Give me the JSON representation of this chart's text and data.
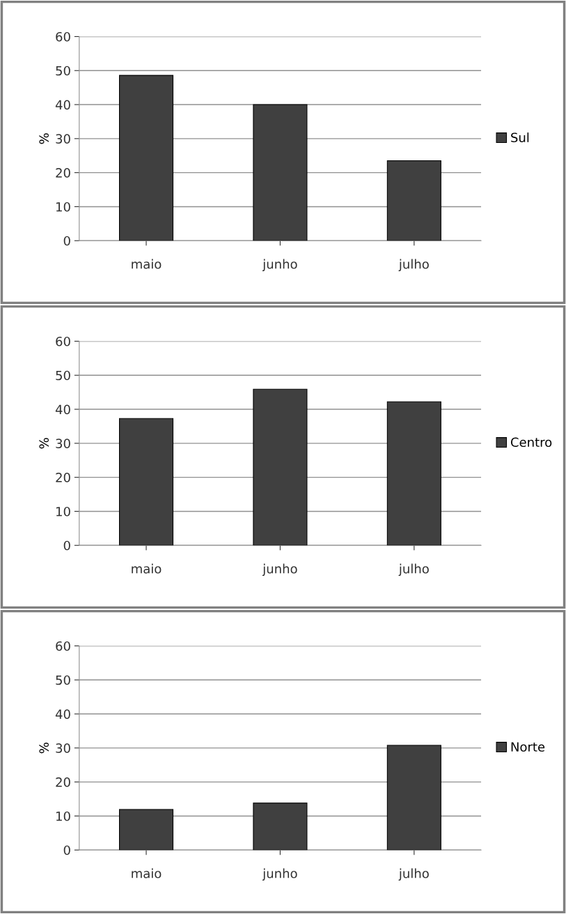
{
  "chart_data": [
    {
      "type": "bar",
      "ylabel": "%",
      "categories": [
        "maio",
        "junho",
        "julho"
      ],
      "series": [
        {
          "name": "Sul",
          "color": "#404040",
          "values": [
            48.6,
            40,
            23.5
          ]
        }
      ],
      "ylim": [
        0,
        60
      ],
      "yticks": [
        0,
        10,
        20,
        30,
        40,
        50,
        60
      ],
      "grid": "y",
      "legend": "right"
    },
    {
      "type": "bar",
      "ylabel": "%",
      "categories": [
        "maio",
        "junho",
        "julho"
      ],
      "series": [
        {
          "name": "Centro",
          "color": "#404040",
          "values": [
            37.3,
            45.9,
            42.2
          ]
        }
      ],
      "ylim": [
        0,
        60
      ],
      "yticks": [
        0,
        10,
        20,
        30,
        40,
        50,
        60
      ],
      "grid": "y",
      "legend": "right"
    },
    {
      "type": "bar",
      "ylabel": "%",
      "categories": [
        "maio",
        "junho",
        "julho"
      ],
      "series": [
        {
          "name": "Norte",
          "color": "#404040",
          "values": [
            11.9,
            13.8,
            30.8
          ]
        }
      ],
      "ylim": [
        0,
        60
      ],
      "yticks": [
        0,
        10,
        20,
        30,
        40,
        50,
        60
      ],
      "grid": "y",
      "legend": "right"
    }
  ]
}
